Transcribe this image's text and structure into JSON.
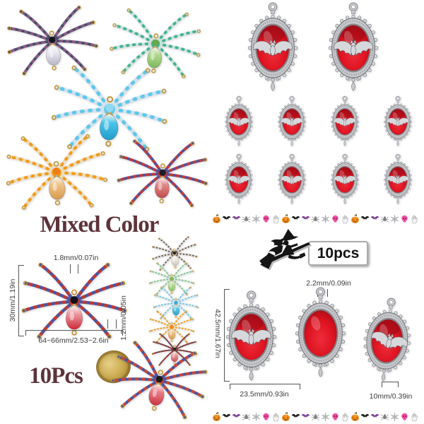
{
  "left_panel": {
    "title": "Mixed Color",
    "count_label": "10Pcs"
  },
  "right_panel": {
    "count_label": "10pcs"
  },
  "spider_dims": {
    "top_wire": "1.8mm/0.07in",
    "height": "30mm/1.19in",
    "side_wire": "1.2mm/0.05in",
    "width": "64~66mm/2.53~2.6in"
  },
  "pendant_dims": {
    "hole": "2.2mm/0.09in",
    "height": "42.5mm/1.67in",
    "width": "23.5mm/0.93in",
    "side": "10mm/0.39in"
  },
  "colors": {
    "title_text": "#5e3339",
    "dim_text": "#3a3a3a",
    "silver": "#c6c8cc",
    "silver_dark": "#6e7074",
    "silver_deep": "#53565a",
    "frame_lip": "#84868a",
    "bat_fill": "#d6d8db",
    "red": "#dd1220",
    "red_bright": "#ee2d3a",
    "red_dark": "#9a0c16",
    "gold": "#bf8f2c",
    "gold_fill": "#c9a14b",
    "coin_gold": "#c9a84c",
    "strip": {
      "pumpkin": "#f6921e",
      "pumpkin_dark": "#c56f0e",
      "stem": "#6d5a1e",
      "bat_black": "#1a1a1a",
      "bat_purple": "#7b3f98",
      "spider_grey": "#808084",
      "web_grey": "#9fa1a4",
      "skull_pink": "#f050a0",
      "skull_dark": "#a81c67",
      "hand_fill": "#f4f4f4",
      "hand_stroke": "#9b9b9b"
    }
  },
  "strip_icons": [
    "pumpkin",
    "black-bat",
    "purple-bat",
    "spider",
    "web",
    "skull",
    "skeleton-hand"
  ],
  "strip_repeats": 3,
  "graphics": {
    "spiders": {
      "tl1": {
        "name": "black-iridescent-spider",
        "legs": "#444a66",
        "accent": "#8a5a85",
        "body": "#eceaf2",
        "body_dark": "#b9b6c6",
        "head": "#15151b"
      },
      "tl2": {
        "name": "green-spider",
        "legs": "#cfe2de",
        "accent": "#3fb392",
        "body": "#b1d88e",
        "body_dark": "#7cb85e",
        "head": "#69a845"
      },
      "tl3": {
        "name": "blue-spider",
        "legs": "#cfe3ef",
        "accent": "#5ec7ec",
        "body": "#49c3e9",
        "body_dark": "#1f9dc9",
        "head": "#8fd9f3"
      },
      "tl4": {
        "name": "orange-spider",
        "legs": "#ecdcb6",
        "accent": "#f29a1a",
        "body": "#eec388",
        "body_dark": "#d79a4e",
        "head": "#ee7d15"
      },
      "tl5": {
        "name": "red-multicolor-spider",
        "legs": "#4b509e",
        "accent": "#c23a35",
        "body": "#e08a8a",
        "body_dark": "#c14949",
        "head": "#1c1c22"
      },
      "main": {
        "name": "measured-spider",
        "legs": "#4756a8",
        "accent": "#c0392f",
        "body": "#ec9aa2",
        "body_dark": "#cc2a37",
        "head": "#101016"
      },
      "c1": {
        "name": "small-black-spider",
        "legs": "#5a4a40",
        "accent": "#e0dad2",
        "body": "#f0eae2",
        "body_dark": "#cfc6b8",
        "head": "#2a2018"
      },
      "c2": {
        "name": "small-green-spider",
        "legs": "#d5e3dc",
        "accent": "#7cc38a",
        "body": "#bcdb97",
        "body_dark": "#8fc26a",
        "head": "#86b356"
      },
      "c3": {
        "name": "small-blue-spider",
        "legs": "#d6e6ef",
        "accent": "#6ec5e6",
        "body": "#5fc7e6",
        "body_dark": "#2ba3cc",
        "head": "#37a8cf"
      },
      "c4": {
        "name": "small-orange-spider",
        "legs": "#eedcb6",
        "accent": "#f0991e",
        "body": "#eec48b",
        "body_dark": "#da9c50",
        "head": "#ee8419"
      },
      "c5": {
        "name": "small-darkred-spider",
        "legs": "#54404a",
        "accent": "#a8423e",
        "body": "#e8999c",
        "body_dark": "#c0565c",
        "head": "#33242a"
      },
      "big": {
        "name": "coin-scale-spider",
        "legs": "#3f56a6",
        "accent": "#cc4433",
        "body": "#ea8088",
        "body_dark": "#c93540",
        "head": "#1b1b20"
      }
    }
  }
}
